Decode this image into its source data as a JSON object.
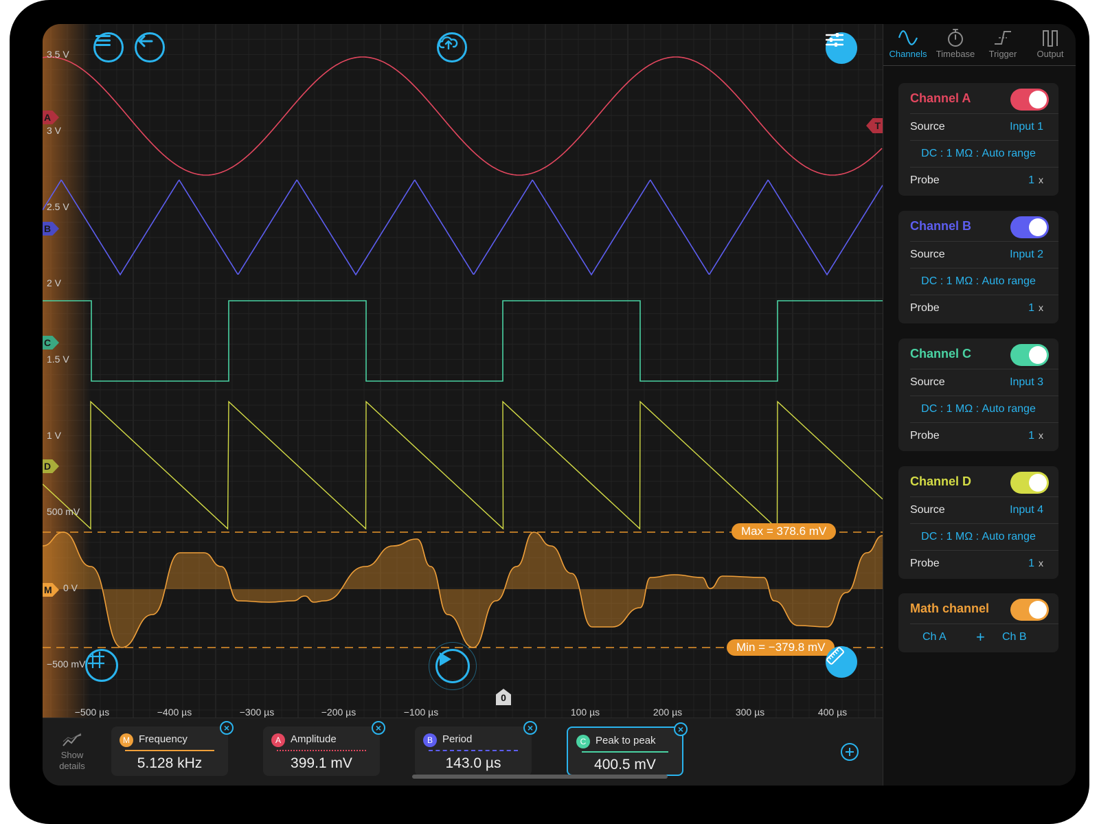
{
  "colors": {
    "accent": "#2ab4ee",
    "channel_a": "#e4475f",
    "channel_b": "#5d5ef0",
    "channel_c": "#4ad3a3",
    "channel_d": "#d4dc46",
    "math": "#f0a03a"
  },
  "toolbar": {
    "menu_icon": "menu-icon",
    "back_icon": "back-arrow-icon",
    "upload_icon": "cloud-upload-icon",
    "settings_icon": "sliders-icon"
  },
  "y_axis_labels": [
    "3.5 V",
    "3 V",
    "2.5 V",
    "2 V",
    "1.5 V",
    "1 V",
    "500 mV",
    "0 V",
    "−500 mV"
  ],
  "x_axis_labels": [
    "−500 µs",
    "−400 µs",
    "−300 µs",
    "−200 µs",
    "−100 µs",
    "100 µs",
    "200 µs",
    "300 µs",
    "400 µs"
  ],
  "zero_marker": "0",
  "channel_markers": {
    "a": "A",
    "b": "B",
    "c": "C",
    "d": "D",
    "m": "M"
  },
  "trigger_marker": "T",
  "max_label": "Max = 378.6 mV",
  "min_label": "Min = −379.8 mV",
  "show_details": {
    "line1": "Show",
    "line2": "details"
  },
  "measurements": [
    {
      "badge": "M",
      "title": "Frequency",
      "value": "5.128 kHz"
    },
    {
      "badge": "A",
      "title": "Amplitude",
      "value": "399.1 mV"
    },
    {
      "badge": "B",
      "title": "Period",
      "value": "143.0 µs"
    },
    {
      "badge": "C",
      "title": "Peak to peak",
      "value": "400.5 mV"
    }
  ],
  "tabs": [
    {
      "label": "Channels"
    },
    {
      "label": "Timebase"
    },
    {
      "label": "Trigger"
    },
    {
      "label": "Output"
    }
  ],
  "channels": [
    {
      "name": "Channel A",
      "source_label": "Source",
      "source": "Input 1",
      "coupling": "DC : 1 MΩ : Auto range",
      "probe_label": "Probe",
      "probe": "1",
      "probe_unit": "x"
    },
    {
      "name": "Channel B",
      "source_label": "Source",
      "source": "Input 2",
      "coupling": "DC : 1 MΩ : Auto range",
      "probe_label": "Probe",
      "probe": "1",
      "probe_unit": "x"
    },
    {
      "name": "Channel C",
      "source_label": "Source",
      "source": "Input 3",
      "coupling": "DC : 1 MΩ : Auto range",
      "probe_label": "Probe",
      "probe": "1",
      "probe_unit": "x"
    },
    {
      "name": "Channel D",
      "source_label": "Source",
      "source": "Input 4",
      "coupling": "DC : 1 MΩ : Auto range",
      "probe_label": "Probe",
      "probe": "1",
      "probe_unit": "x"
    }
  ],
  "math_channel": {
    "name": "Math channel",
    "operand_a": "Ch A",
    "operator": "+",
    "operand_b": "Ch B"
  }
}
